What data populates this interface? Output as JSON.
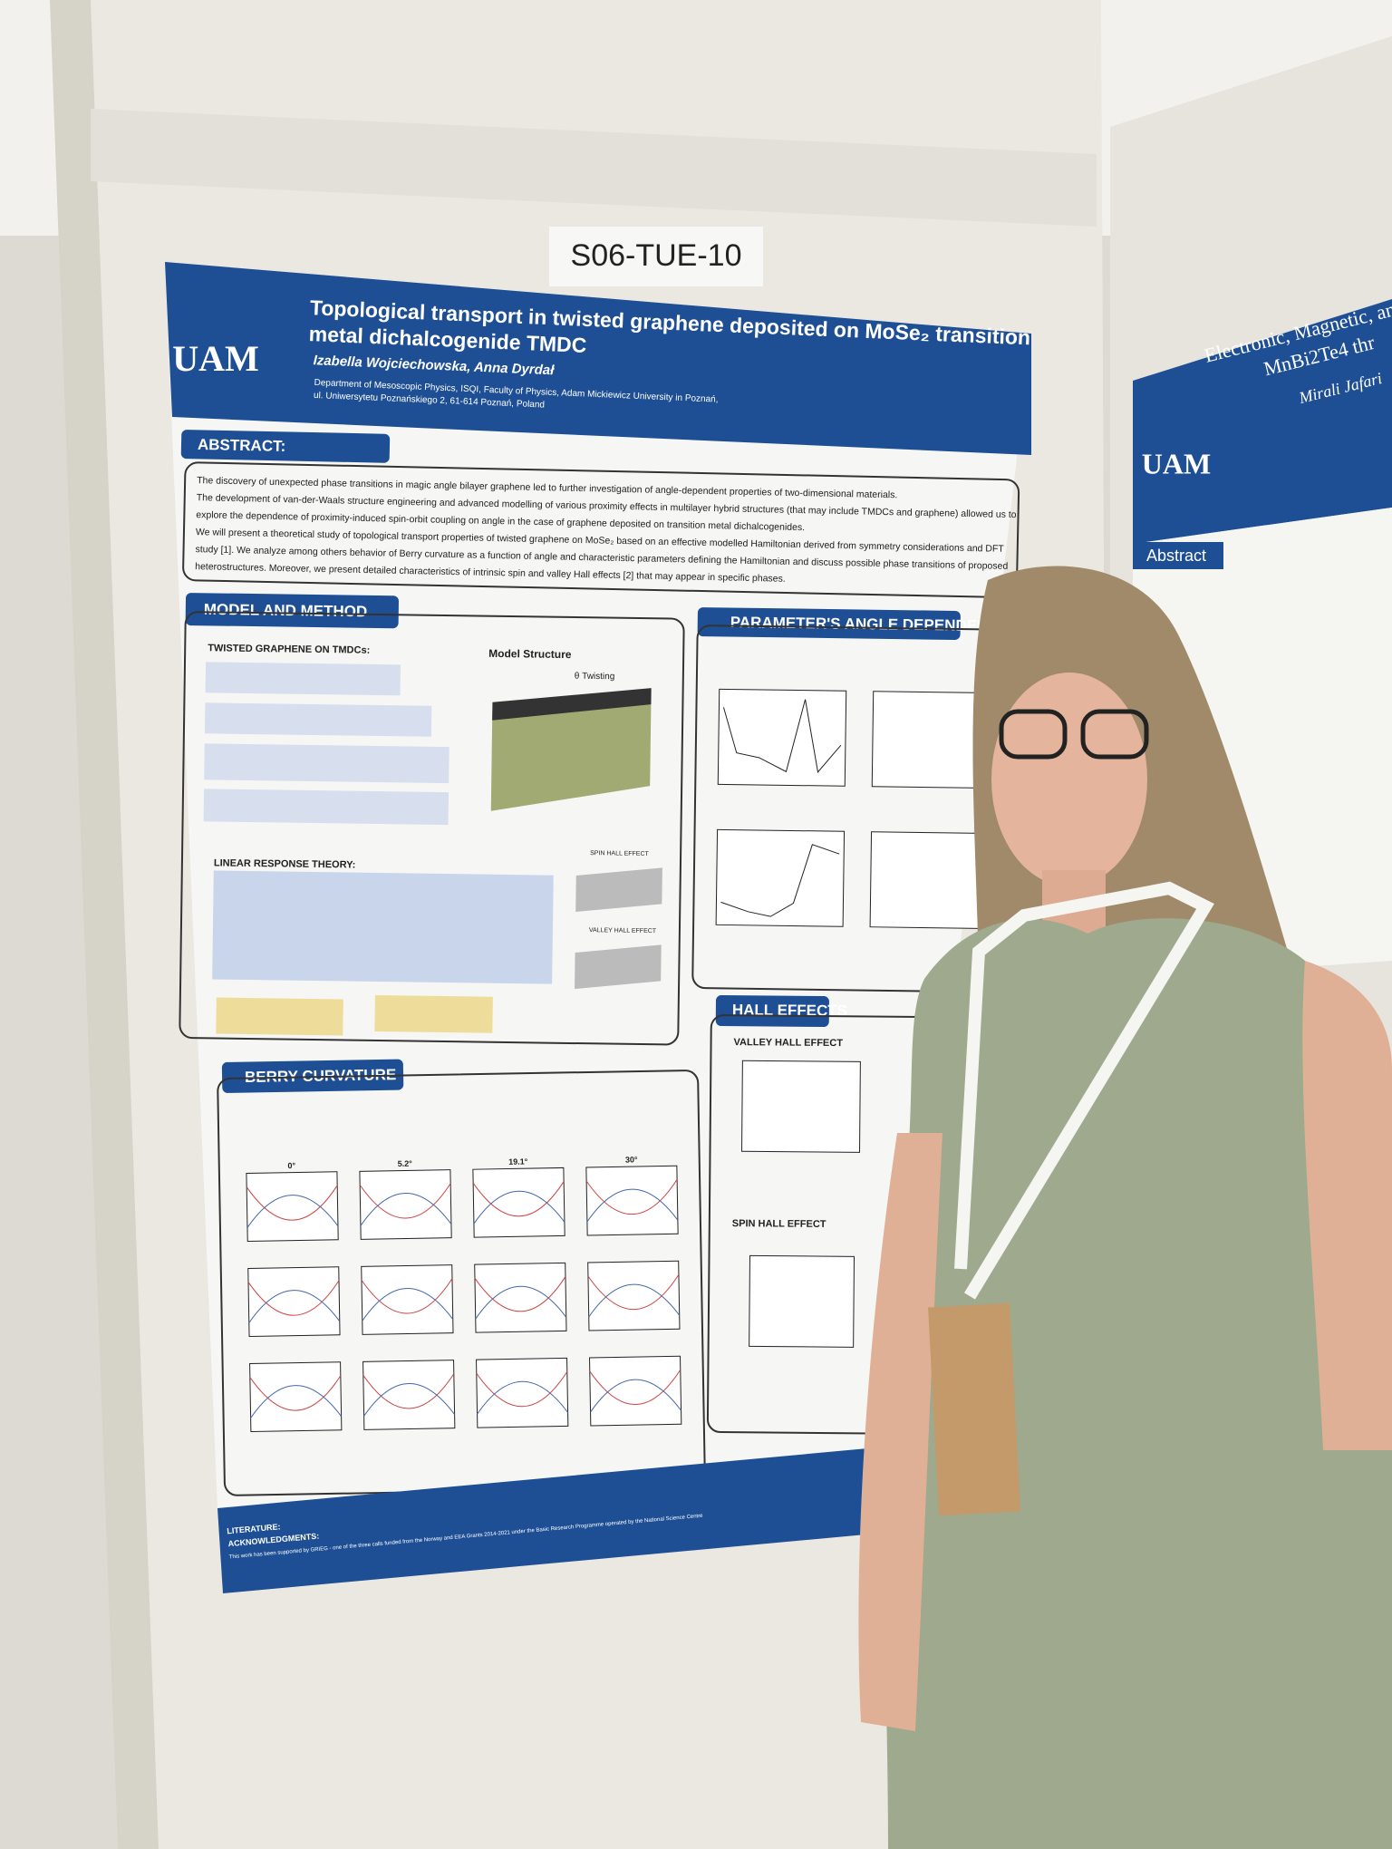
{
  "board_label": "S06-TUE-10",
  "poster": {
    "logo": "UAM",
    "title_line1": "Topological transport in twisted graphene deposited on MoSe₂ transition",
    "title_line2": "metal dichalcogenide TMDC",
    "authors": "Izabella Wojciechowska, Anna Dyrdał",
    "affiliation_line1": "Department of Mesoscopic Physics, ISQI, Faculty of Physics, Adam Mickiewicz University in Poznań,",
    "affiliation_line2": "ul. Uniwersytetu Poznańskiego 2, 61-614 Poznań, Poland",
    "abstract_heading": "ABSTRACT:",
    "abstract_lines": [
      "The discovery of unexpected phase transitions in magic angle bilayer graphene led to further investigation of angle-dependent properties of two-dimensional materials.",
      "The development of van-der-Waals structure engineering and advanced modelling of various proximity effects in multilayer hybrid structures (that may include TMDCs and graphene) allowed us to",
      "explore the dependence of proximity-induced spin-orbit coupling on angle in the case of graphene deposited on transition metal dichalcogenides.",
      "We will present a theoretical study of topological transport properties of twisted graphene on MoSe₂ based on an effective modelled Hamiltonian derived from symmetry considerations and DFT",
      "study [1]. We analyze among others behavior of Berry curvature as a function of angle and characteristic parameters defining the Hamiltonian and discuss possible phase transitions of proposed",
      "heterostructures. Moreover, we present detailed characteristics of intrinsic spin and valley Hall effects [2] that may appear in specific phases."
    ],
    "model_heading": "MODEL AND METHOD",
    "twisted_heading": "TWISTED GRAPHENE ON TMDCs:",
    "model_structure": "Model Structure",
    "twisting": "θ Twisting",
    "linear_response": "LINEAR RESPONSE THEORY:",
    "spin_hall_label": "SPIN HALL EFFECT",
    "valley_hall_label": "VALLEY HALL EFFECT",
    "parameter_heading": "PARAMETER'S ANGLE DEPENDENCE",
    "hall_heading": "HALL EFFECTS",
    "valley_hall_effect": "VALLEY HALL EFFECT",
    "spin_hall_effect": "SPIN HALL EFFECT",
    "berry_heading": "BERRY CURVATURE",
    "berry_angles": [
      "0°",
      "5.2°",
      "19.1°",
      "30°"
    ],
    "footer_lines": [
      "LITERATURE:",
      "ACKNOWLEDGMENTS:",
      "This work has been supported by GRIEG - one of the three calls funded from the Norway and EEA Grants 2014-2021 under the Basic Research Programme operated by the National Science Centre"
    ]
  },
  "right_poster": {
    "title_line1": "Electronic, Magnetic, and Tr",
    "title_line2": "MnBi2Te4 thr",
    "author": "Mirali Jafari",
    "logo": "UAM",
    "abstract_heading": "Abstract"
  }
}
